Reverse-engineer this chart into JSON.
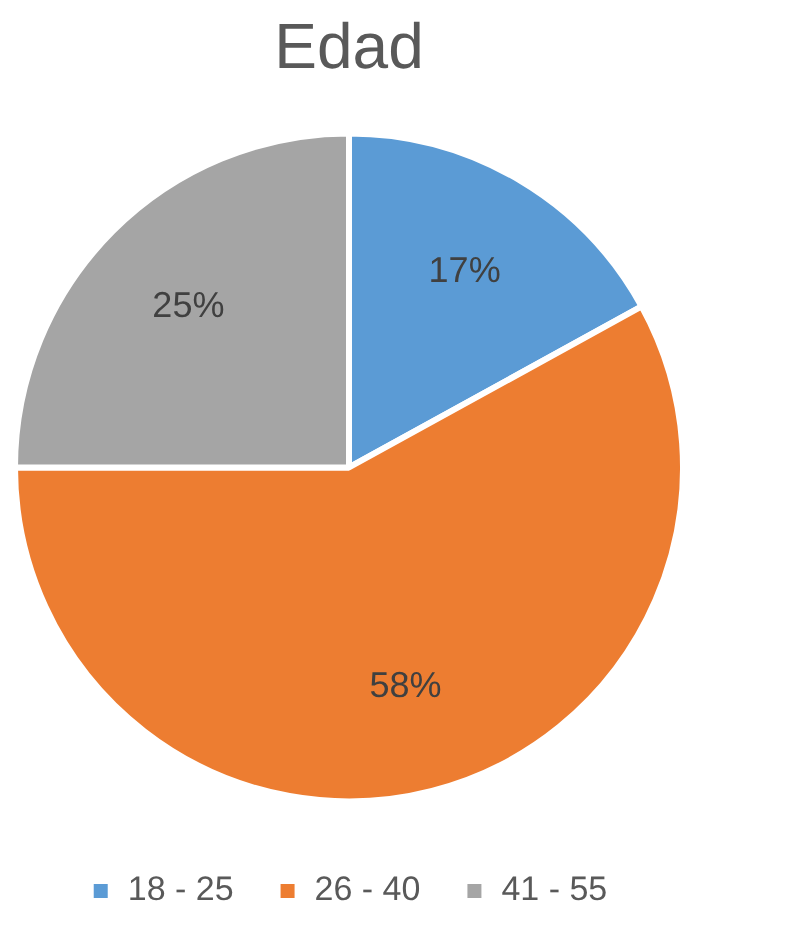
{
  "chart_data": {
    "type": "pie",
    "title": "Edad",
    "categories": [
      "18 - 25",
      "26 - 40",
      "41 - 55"
    ],
    "values": [
      17,
      58,
      25
    ],
    "colors": [
      "#5b9bd5",
      "#ed7d31",
      "#a5a5a5"
    ],
    "value_labels": [
      "17%",
      "58%",
      "25%"
    ],
    "legend": "bottom"
  }
}
